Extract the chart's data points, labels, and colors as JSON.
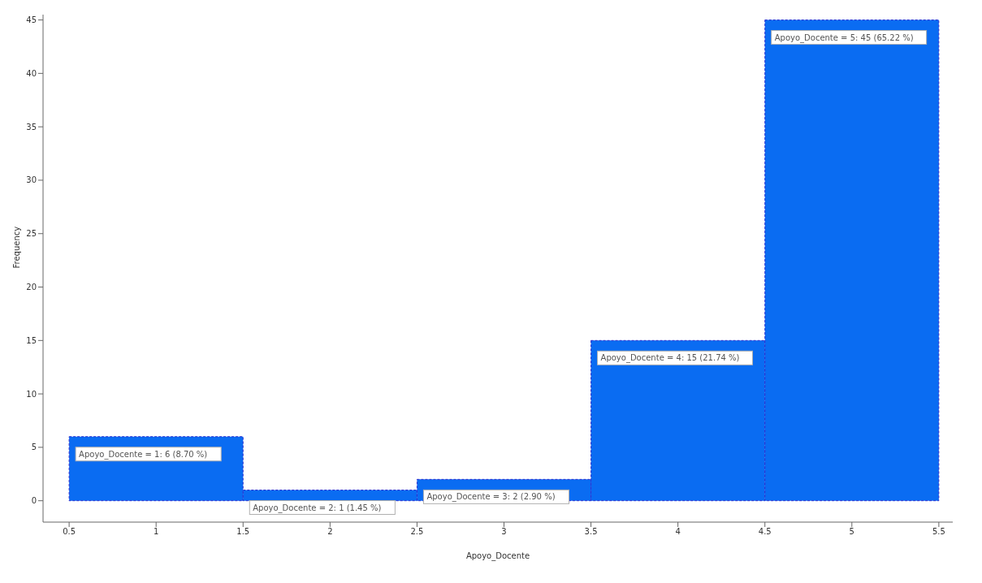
{
  "chart_data": {
    "type": "histogram",
    "xlabel": "Apoyo_Docente",
    "ylabel": "Frequency",
    "bins": [
      0.5,
      1.5,
      2.5,
      3.5,
      4.5,
      5.5
    ],
    "values": [
      6,
      1,
      2,
      15,
      45
    ],
    "color": "#0a6cf2",
    "value_labels": [
      "Apoyo_Docente = 1: 6 (8.70 %)",
      "Apoyo_Docente = 2: 1 (1.45 %)",
      "Apoyo_Docente = 3: 2 (2.90 %)",
      "Apoyo_Docente = 4: 15 (21.74 %)",
      "Apoyo_Docente = 5: 45 (65.22 %)"
    ],
    "xlim": [
      0.35,
      5.58
    ],
    "xticks": [
      0.5,
      1,
      1.5,
      2,
      2.5,
      3,
      3.5,
      4,
      4.5,
      5,
      5.5
    ],
    "ylim": [
      -2,
      45.5
    ],
    "yticks": [
      0,
      5,
      10,
      15,
      20,
      25,
      30,
      35,
      40,
      45
    ]
  }
}
